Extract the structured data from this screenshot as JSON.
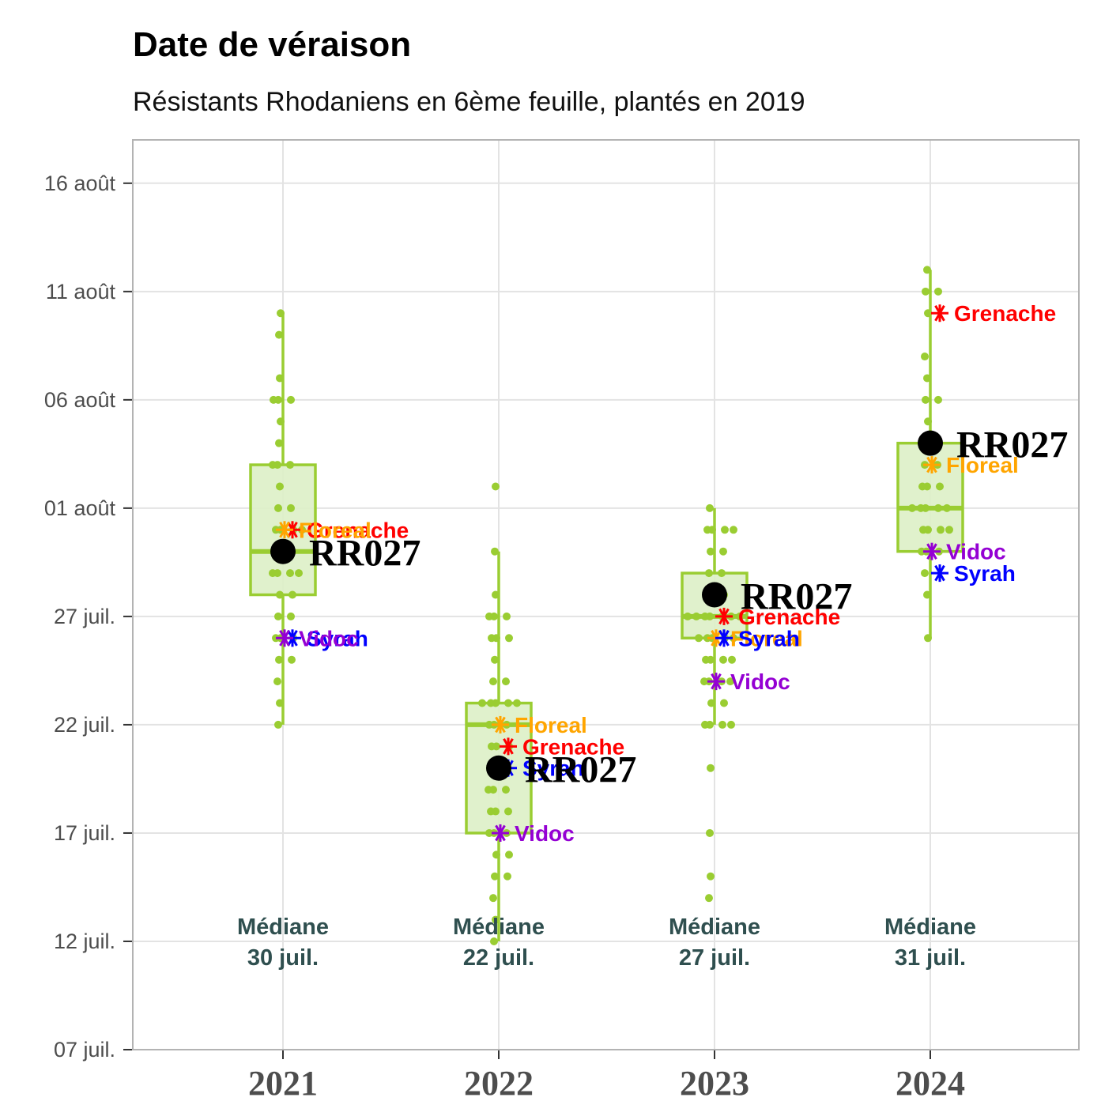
{
  "title": "Date de véraison",
  "subtitle": "Résistants Rhodaniens en 6ème feuille, plantés en 2019",
  "chart_data": {
    "type": "box",
    "title": "Date de véraison",
    "subtitle": "Résistants Rhodaniens en 6ème feuille, plantés en 2019",
    "categories": [
      "2021",
      "2022",
      "2023",
      "2024"
    ],
    "y_axis": {
      "unit": "day of year",
      "range": [
        188,
        230
      ],
      "ticks": [
        {
          "value": 188,
          "label": "07 juil."
        },
        {
          "value": 193,
          "label": "12 juil."
        },
        {
          "value": 198,
          "label": "17 juil."
        },
        {
          "value": 203,
          "label": "22 juil."
        },
        {
          "value": 208,
          "label": "27 juil."
        },
        {
          "value": 213,
          "label": "01 août"
        },
        {
          "value": 218,
          "label": "06 août"
        },
        {
          "value": 223,
          "label": "11 août"
        },
        {
          "value": 228,
          "label": "16 août"
        }
      ]
    },
    "grid": true,
    "colors": {
      "box": "#9acd32",
      "box_fill": "#ddefc6",
      "Grenache": "#ff0000",
      "Floreal": "#ffa500",
      "Syrah": "#0000ff",
      "Vidoc": "#9400d3",
      "RR027": "#000000",
      "median_text": "#2f4f4f"
    },
    "boxes": [
      {
        "category": "2021",
        "min": 203,
        "q1": 209,
        "median": 211,
        "q3": 215,
        "max": 222
      },
      {
        "category": "2022",
        "min": 193,
        "q1": 198,
        "median": 203,
        "q3": 204,
        "max": 211
      },
      {
        "category": "2023",
        "min": 203,
        "q1": 207,
        "median": 208,
        "q3": 210,
        "max": 213
      },
      {
        "category": "2024",
        "min": 207,
        "q1": 211,
        "median": 213,
        "q3": 216,
        "max": 224
      }
    ],
    "points": [
      {
        "category": "2021",
        "values": [
          222,
          221,
          219,
          218,
          218,
          218,
          217,
          216,
          215,
          215,
          215,
          214,
          213,
          213,
          212,
          212,
          212,
          212,
          211,
          211,
          210,
          210,
          210,
          210,
          209,
          209,
          208,
          208,
          207,
          207,
          207,
          206,
          206,
          205,
          204,
          203
        ]
      },
      {
        "category": "2022",
        "values": [
          214,
          211,
          209,
          208,
          208,
          208,
          207,
          207,
          207,
          206,
          205,
          205,
          204,
          204,
          204,
          204,
          204,
          203,
          203,
          203,
          202,
          202,
          202,
          201,
          201,
          201,
          200,
          200,
          200,
          199,
          199,
          199,
          198,
          198,
          198,
          197,
          197,
          196,
          196,
          195,
          194,
          193
        ]
      },
      {
        "category": "2023",
        "values": [
          213,
          212,
          212,
          212,
          212,
          211,
          211,
          210,
          210,
          209,
          209,
          209,
          208,
          208,
          208,
          208,
          208,
          208,
          208,
          207,
          207,
          207,
          207,
          207,
          206,
          206,
          206,
          206,
          205,
          205,
          205,
          205,
          204,
          204,
          203,
          203,
          203,
          203,
          201,
          198,
          196,
          195
        ]
      },
      {
        "category": "2024",
        "values": [
          224,
          223,
          223,
          222,
          220,
          219,
          218,
          218,
          217,
          216,
          216,
          216,
          215,
          215,
          214,
          214,
          214,
          213,
          213,
          213,
          213,
          213,
          212,
          212,
          212,
          212,
          211,
          211,
          211,
          210,
          209,
          207
        ]
      }
    ],
    "medians": [
      {
        "category": "2021",
        "label": "Médiane",
        "value": "30 juil."
      },
      {
        "category": "2022",
        "label": "Médiane",
        "value": "22 juil."
      },
      {
        "category": "2023",
        "label": "Médiane",
        "value": "27 juil."
      },
      {
        "category": "2024",
        "label": "Médiane",
        "value": "31 juil."
      }
    ],
    "varieties": [
      {
        "name": "Grenache",
        "values": {
          "2021": 212,
          "2022": 202,
          "2023": 208,
          "2024": 222
        }
      },
      {
        "name": "Floreal",
        "values": {
          "2021": 212,
          "2022": 203,
          "2023": 207,
          "2024": 215
        }
      },
      {
        "name": "Syrah",
        "values": {
          "2021": 207,
          "2022": 201,
          "2023": 207,
          "2024": 210
        }
      },
      {
        "name": "Vidoc",
        "values": {
          "2021": 207,
          "2022": 198,
          "2023": 205,
          "2024": 211
        }
      }
    ],
    "focus": {
      "name": "RR027",
      "values": {
        "2021": 211,
        "2022": 201,
        "2023": 209,
        "2024": 216
      }
    }
  }
}
